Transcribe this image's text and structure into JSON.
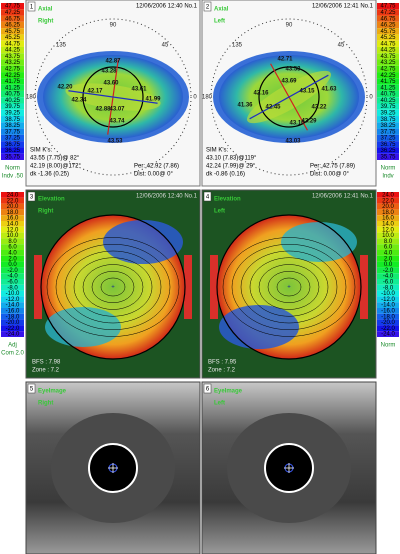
{
  "axial_scale": {
    "left": {
      "ticks": [
        "47.75",
        "47.25",
        "46.75",
        "46.25",
        "45.75",
        "45.25",
        "44.75",
        "44.25",
        "43.75",
        "43.25",
        "42.75",
        "42.25",
        "41.75",
        "41.25",
        "40.75",
        "40.25",
        "39.75",
        "39.25",
        "38.75",
        "38.25",
        "37.75",
        "37.25",
        "36.75",
        "36.25",
        "35.75"
      ],
      "notes": [
        "Norm",
        "Indv .50"
      ]
    },
    "right": {
      "ticks": [
        "47.75",
        "47.25",
        "46.75",
        "46.25",
        "45.75",
        "45.25",
        "44.75",
        "44.25",
        "43.75",
        "43.25",
        "42.75",
        "42.25",
        "41.75",
        "41.25",
        "40.75",
        "40.25",
        "39.75",
        "39.25",
        "38.75",
        "38.25",
        "37.75",
        "37.25",
        "36.75",
        "36.25",
        "35.75"
      ],
      "notes": [
        "Norm",
        "Indv"
      ]
    }
  },
  "elevation_scale": {
    "left": {
      "ticks": [
        "24.0",
        "22.0",
        "20.0",
        "18.0",
        "16.0",
        "14.0",
        "12.0",
        "10.0",
        "8.0",
        "6.0",
        "4.0",
        "2.0",
        "0.0",
        "-2.0",
        "-4.0",
        "-6.0",
        "-8.0",
        "-10.0",
        "-12.0",
        "-14.0",
        "-16.0",
        "-18.0",
        "-20.0",
        "-22.0",
        "-24.0"
      ],
      "notes": [
        "Adj",
        "Com 2.0"
      ]
    },
    "right": {
      "ticks": [
        "24.0",
        "22.0",
        "20.0",
        "18.0",
        "16.0",
        "14.0",
        "12.0",
        "10.0",
        "8.0",
        "6.0",
        "4.0",
        "2.0",
        "0.0",
        "-2.0",
        "-4.0",
        "-6.0",
        "-8.0",
        "-10.0",
        "-12.0",
        "-14.0",
        "-16.0",
        "-18.0",
        "-20.0",
        "-22.0",
        "-24.0"
      ],
      "notes": [
        "Norm"
      ]
    }
  },
  "axial_angles": [
    "90",
    "135",
    "45",
    "180",
    "0"
  ],
  "panels": [
    {
      "number": "1",
      "title": [
        "Axial",
        "Right"
      ],
      "stamp": "12/06/2006 12:40 No.1",
      "labels": [
        "42.87",
        "43.28",
        "43.60",
        "42.20",
        "42.34",
        "42.17",
        "42.88",
        "41.99",
        "43.61",
        "43.07",
        "43.74",
        "43.53"
      ],
      "info": [
        "SIM K's:",
        "43.55 (7.75)@ 82°",
        "42.19 (8.00)@172°",
        "dk -1.36 (0.25)"
      ],
      "info2": [
        "Per: 42.92 (7.86)",
        "Dist: 0.00@ 0°"
      ]
    },
    {
      "number": "2",
      "title": [
        "Axial",
        "Left"
      ],
      "stamp": "12/06/2006 12:41 No.1",
      "labels": [
        "42.71",
        "43.53",
        "43.69",
        "41.63",
        "41.36",
        "42.16",
        "42.45",
        "43.22",
        "43.15",
        "43.29",
        "43.10",
        "43.03"
      ],
      "info": [
        "SIM K's:",
        "43.10 (7.83)@119°",
        "42.24 (7.99)@ 29°",
        "dk -0.86 (0.16)"
      ],
      "info2": [
        "Per: 42.75 (7.89)",
        "Dist: 0.00@ 0°"
      ]
    },
    {
      "number": "3",
      "title": [
        "Elevation",
        "Right"
      ],
      "stamp": "12/06/2006 12:40 No.1",
      "info": [
        "BFS : 7.98",
        "Zone : 7.2"
      ]
    },
    {
      "number": "4",
      "title": [
        "Elevation",
        "Left"
      ],
      "stamp": "12/06/2006 12:41 No.1",
      "info": [
        "BFS : 7.95",
        "Zone : 7.2"
      ]
    },
    {
      "number": "5",
      "title": [
        "EyeImage",
        "Right"
      ]
    },
    {
      "number": "6",
      "title": [
        "EyeImage",
        "Left"
      ]
    }
  ]
}
